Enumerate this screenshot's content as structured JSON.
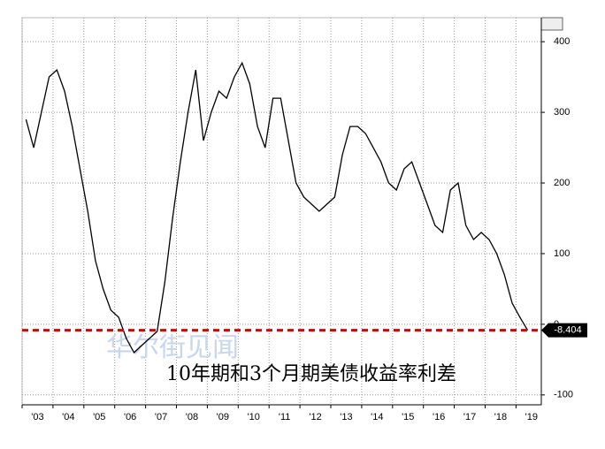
{
  "chart_data": {
    "type": "line",
    "annotation": "10年期和3个月期美债收益率利差",
    "watermark": "华尔街见闻",
    "categories": [
      "'03",
      null,
      null,
      null,
      "'04",
      null,
      null,
      null,
      "'05",
      null,
      null,
      null,
      "'06",
      null,
      null,
      null,
      "'07",
      null,
      null,
      null,
      "'08",
      null,
      null,
      null,
      "'09",
      null,
      null,
      null,
      "'10",
      null,
      null,
      null,
      "'11",
      null,
      null,
      null,
      "'12",
      null,
      null,
      null,
      "'13",
      null,
      null,
      null,
      "'14",
      null,
      null,
      null,
      "'15",
      null,
      null,
      null,
      "'16",
      null,
      null,
      null,
      "'17",
      null,
      null,
      null,
      "'18",
      null,
      null,
      null,
      "'19",
      null
    ],
    "series": [
      {
        "name": null,
        "color": "#000000",
        "values": [
          290,
          250,
          300,
          350,
          360,
          330,
          280,
          220,
          160,
          90,
          50,
          20,
          10,
          -20,
          -40,
          -30,
          -20,
          -10,
          60,
          150,
          230,
          300,
          360,
          260,
          300,
          330,
          320,
          350,
          370,
          340,
          280,
          250,
          320,
          320,
          260,
          200,
          180,
          170,
          160,
          170,
          180,
          240,
          280,
          280,
          270,
          250,
          230,
          200,
          190,
          220,
          230,
          200,
          170,
          140,
          130,
          190,
          200,
          140,
          120,
          130,
          120,
          100,
          70,
          30,
          10,
          -8.404
        ]
      }
    ],
    "ylim": [
      -114,
      434
    ],
    "yticks": [
      -100,
      0,
      100,
      200,
      300,
      400
    ],
    "grid": true,
    "reference_color": "#e00000"
  }
}
